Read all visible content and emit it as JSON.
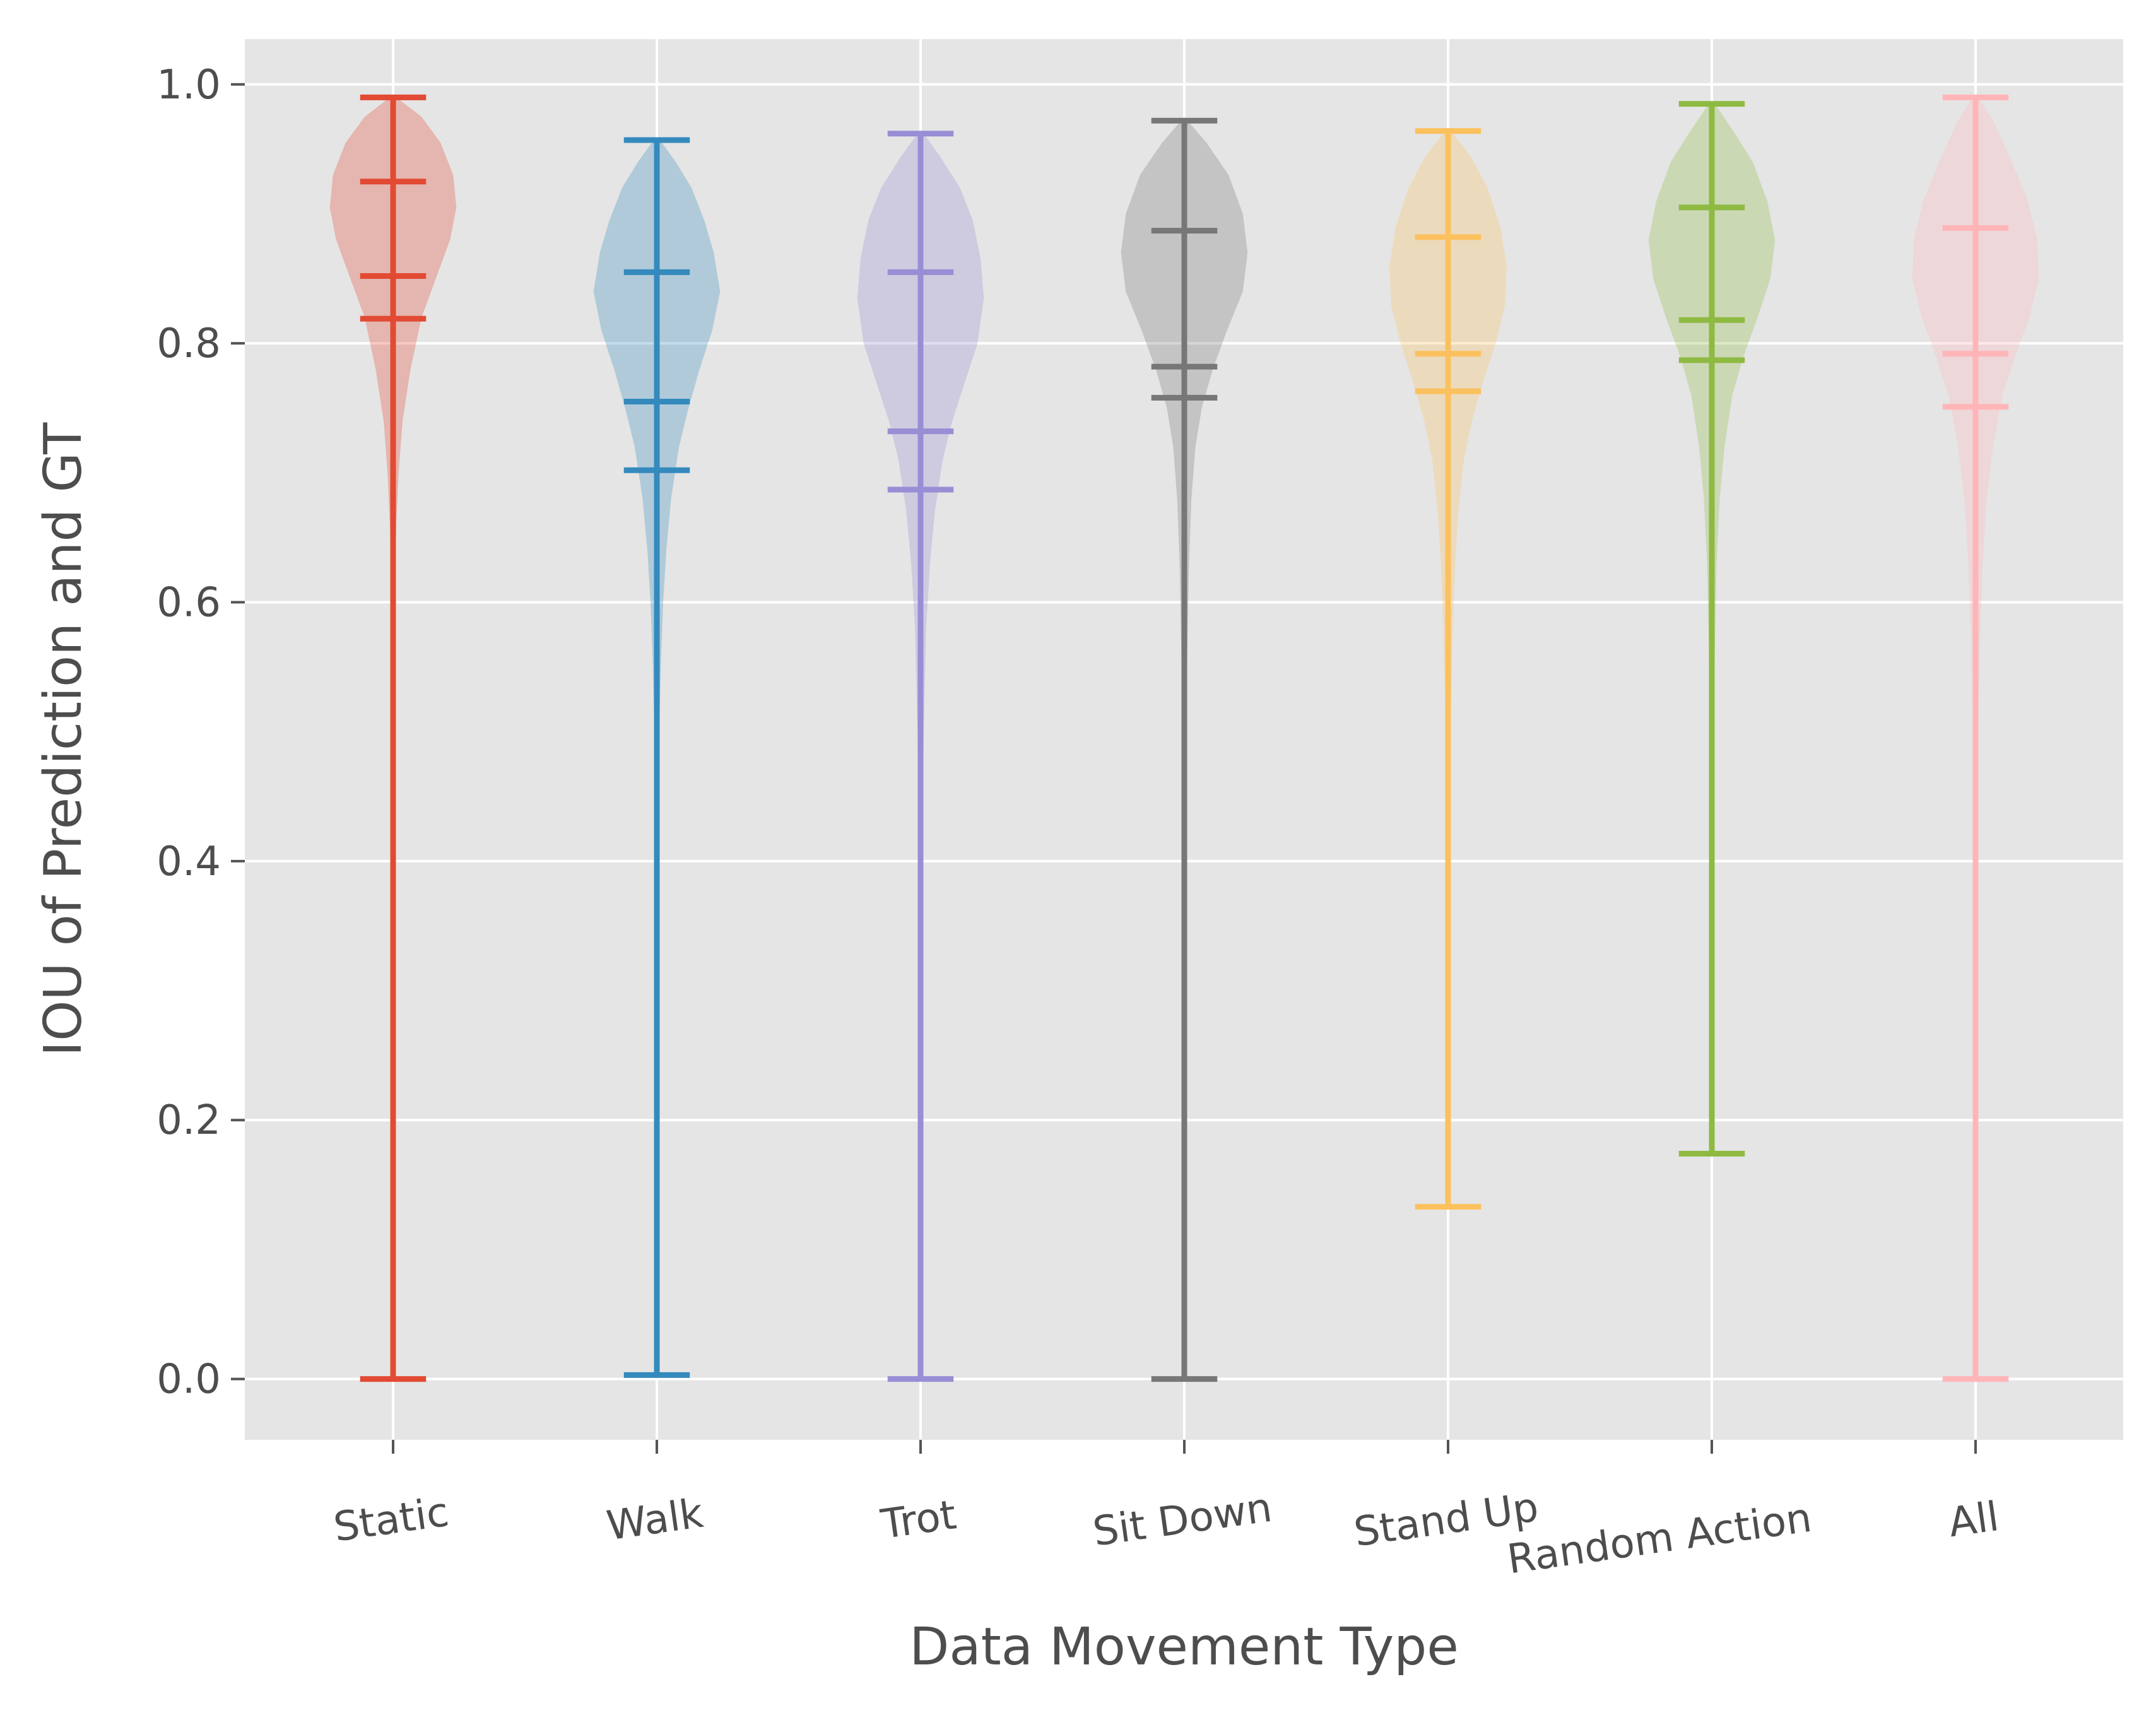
{
  "chart_data": {
    "type": "violin",
    "title": "",
    "xlabel": "Data Movement Type",
    "ylabel": "IOU of Prediction and GT",
    "ylim": [
      -0.047,
      1.035
    ],
    "yticks": [
      "0.0",
      "0.2",
      "0.4",
      "0.6",
      "0.8",
      "1.0"
    ],
    "ytick_values": [
      0.0,
      0.2,
      0.4,
      0.6,
      0.8,
      1.0
    ],
    "grid": true,
    "legend": "none",
    "background": "#e5e5e5",
    "categories": [
      "Static",
      "Walk",
      "Trot",
      "Sit Down",
      "Stand Up",
      "Random Action",
      "All"
    ],
    "series": [
      {
        "color": "#e24a33",
        "min": 0.0,
        "max": 0.99,
        "lines": [
          0.925,
          0.852,
          0.819
        ],
        "density": [
          [
            0.99,
            0.02
          ],
          [
            0.975,
            0.18
          ],
          [
            0.955,
            0.3
          ],
          [
            0.93,
            0.38
          ],
          [
            0.905,
            0.4
          ],
          [
            0.88,
            0.36
          ],
          [
            0.85,
            0.27
          ],
          [
            0.82,
            0.18
          ],
          [
            0.78,
            0.11
          ],
          [
            0.74,
            0.06
          ],
          [
            0.7,
            0.035
          ],
          [
            0.66,
            0.02
          ],
          [
            0.6,
            0.01
          ],
          [
            0.5,
            0.006
          ],
          [
            0.3,
            0.003
          ],
          [
            0.0,
            0.002
          ]
        ]
      },
      {
        "color": "#348abd",
        "min": 0.003,
        "max": 0.957,
        "lines": [
          0.855,
          0.755,
          0.702
        ],
        "density": [
          [
            0.957,
            0.02
          ],
          [
            0.94,
            0.12
          ],
          [
            0.92,
            0.22
          ],
          [
            0.895,
            0.3
          ],
          [
            0.87,
            0.36
          ],
          [
            0.84,
            0.4
          ],
          [
            0.81,
            0.35
          ],
          [
            0.78,
            0.27
          ],
          [
            0.75,
            0.2
          ],
          [
            0.72,
            0.14
          ],
          [
            0.68,
            0.09
          ],
          [
            0.64,
            0.06
          ],
          [
            0.6,
            0.04
          ],
          [
            0.55,
            0.025
          ],
          [
            0.5,
            0.015
          ],
          [
            0.4,
            0.007
          ],
          [
            0.2,
            0.003
          ],
          [
            0.003,
            0.002
          ]
        ]
      },
      {
        "color": "#988ed5",
        "min": 0.0,
        "max": 0.962,
        "lines": [
          0.855,
          0.732,
          0.687
        ],
        "density": [
          [
            0.962,
            0.02
          ],
          [
            0.945,
            0.12
          ],
          [
            0.92,
            0.25
          ],
          [
            0.895,
            0.33
          ],
          [
            0.865,
            0.38
          ],
          [
            0.835,
            0.4
          ],
          [
            0.8,
            0.36
          ],
          [
            0.77,
            0.28
          ],
          [
            0.74,
            0.2
          ],
          [
            0.71,
            0.14
          ],
          [
            0.67,
            0.09
          ],
          [
            0.63,
            0.06
          ],
          [
            0.58,
            0.035
          ],
          [
            0.5,
            0.02
          ],
          [
            0.4,
            0.01
          ],
          [
            0.2,
            0.004
          ],
          [
            0.0,
            0.002
          ]
        ]
      },
      {
        "color": "#777777",
        "min": 0.0,
        "max": 0.972,
        "lines": [
          0.887,
          0.782,
          0.758
        ],
        "density": [
          [
            0.972,
            0.02
          ],
          [
            0.955,
            0.14
          ],
          [
            0.93,
            0.28
          ],
          [
            0.9,
            0.37
          ],
          [
            0.87,
            0.4
          ],
          [
            0.84,
            0.37
          ],
          [
            0.81,
            0.27
          ],
          [
            0.78,
            0.18
          ],
          [
            0.75,
            0.11
          ],
          [
            0.72,
            0.07
          ],
          [
            0.68,
            0.045
          ],
          [
            0.63,
            0.03
          ],
          [
            0.57,
            0.02
          ],
          [
            0.5,
            0.012
          ],
          [
            0.4,
            0.007
          ],
          [
            0.2,
            0.003
          ],
          [
            0.0,
            0.002
          ]
        ]
      },
      {
        "color": "#fbc15e",
        "min": 0.133,
        "max": 0.964,
        "lines": [
          0.882,
          0.792,
          0.763
        ],
        "density": [
          [
            0.964,
            0.02
          ],
          [
            0.945,
            0.14
          ],
          [
            0.92,
            0.25
          ],
          [
            0.89,
            0.33
          ],
          [
            0.86,
            0.37
          ],
          [
            0.83,
            0.36
          ],
          [
            0.8,
            0.3
          ],
          [
            0.77,
            0.22
          ],
          [
            0.74,
            0.15
          ],
          [
            0.71,
            0.1
          ],
          [
            0.67,
            0.065
          ],
          [
            0.63,
            0.045
          ],
          [
            0.58,
            0.03
          ],
          [
            0.5,
            0.015
          ],
          [
            0.4,
            0.007
          ],
          [
            0.25,
            0.003
          ],
          [
            0.133,
            0.002
          ]
        ]
      },
      {
        "color": "#8eba42",
        "min": 0.174,
        "max": 0.985,
        "lines": [
          0.905,
          0.818,
          0.787
        ],
        "density": [
          [
            0.985,
            0.02
          ],
          [
            0.965,
            0.13
          ],
          [
            0.94,
            0.26
          ],
          [
            0.91,
            0.35
          ],
          [
            0.88,
            0.4
          ],
          [
            0.85,
            0.37
          ],
          [
            0.82,
            0.29
          ],
          [
            0.79,
            0.2
          ],
          [
            0.76,
            0.13
          ],
          [
            0.72,
            0.08
          ],
          [
            0.68,
            0.05
          ],
          [
            0.63,
            0.03
          ],
          [
            0.57,
            0.02
          ],
          [
            0.5,
            0.012
          ],
          [
            0.4,
            0.006
          ],
          [
            0.25,
            0.003
          ],
          [
            0.174,
            0.002
          ]
        ]
      },
      {
        "color": "#ffb5b8",
        "min": 0.0,
        "max": 0.99,
        "lines": [
          0.889,
          0.792,
          0.751
        ],
        "density": [
          [
            0.99,
            0.02
          ],
          [
            0.97,
            0.12
          ],
          [
            0.94,
            0.23
          ],
          [
            0.91,
            0.33
          ],
          [
            0.88,
            0.39
          ],
          [
            0.85,
            0.4
          ],
          [
            0.82,
            0.34
          ],
          [
            0.79,
            0.25
          ],
          [
            0.76,
            0.17
          ],
          [
            0.72,
            0.11
          ],
          [
            0.68,
            0.07
          ],
          [
            0.63,
            0.045
          ],
          [
            0.57,
            0.028
          ],
          [
            0.5,
            0.016
          ],
          [
            0.4,
            0.008
          ],
          [
            0.2,
            0.003
          ],
          [
            0.0,
            0.002
          ]
        ]
      }
    ]
  }
}
